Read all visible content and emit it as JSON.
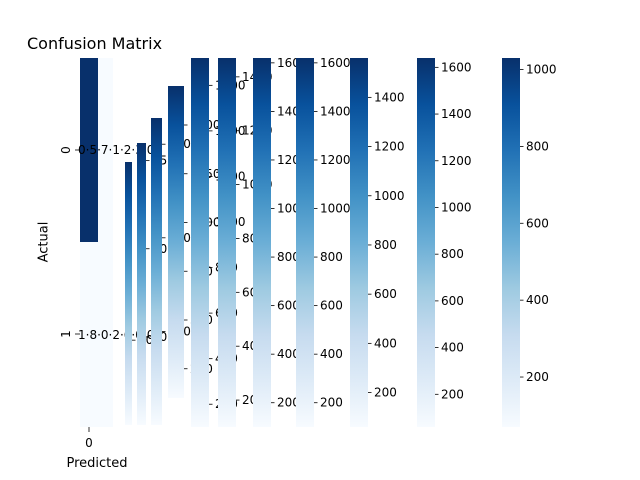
{
  "chart_data": {
    "type": "heatmap",
    "title": "Confusion Matrix",
    "xlabel": "Predicted",
    "ylabel": "Actual",
    "x_tick_labels": [
      "0"
    ],
    "y_tick_labels": [
      "0",
      "1"
    ],
    "colormap": "Blues",
    "colorbars": [
      {
        "vmin": 0,
        "vmax": 1550,
        "ticks": [
          500
        ]
      },
      {
        "vmin": 0,
        "vmax": 1600,
        "ticks": [
          500,
          1000,
          1500
        ]
      },
      {
        "vmin": 0,
        "vmax": 1640,
        "ticks": [
          500,
          1000,
          1500
        ]
      },
      {
        "vmin": 100,
        "vmax": 1700,
        "ticks": [
          250,
          500,
          750,
          1000,
          1250,
          1500
        ]
      },
      {
        "vmin": 100,
        "vmax": 1720,
        "ticks": [
          200,
          400,
          600,
          800,
          1000,
          1200,
          1400,
          1600
        ]
      },
      {
        "vmin": 100,
        "vmax": 1470,
        "ticks": [
          200,
          400,
          600,
          800,
          1000,
          1200,
          1400
        ]
      },
      {
        "vmin": 100,
        "vmax": 1620,
        "ticks": [
          200,
          400,
          600,
          800,
          1000,
          1200,
          1400,
          1600
        ]
      },
      {
        "vmin": 100,
        "vmax": 1620,
        "ticks": [
          200,
          400,
          600,
          800,
          1000,
          1200,
          1400,
          1600
        ]
      },
      {
        "vmin": 60,
        "vmax": 1560,
        "ticks": [
          200,
          400,
          600,
          800,
          1000,
          1200,
          1400
        ]
      },
      {
        "vmin": 60,
        "vmax": 1640,
        "ticks": [
          200,
          400,
          600,
          800,
          1000,
          1200,
          1400,
          1600
        ]
      },
      {
        "vmin": 70,
        "vmax": 1030,
        "ticks": [
          200,
          400,
          600,
          800,
          1000
        ]
      }
    ]
  },
  "colors": {
    "cell_dark": "#08306b",
    "cell_light": "#f7fbff",
    "blues_scale": [
      "#f7fbff",
      "#deebf7",
      "#c6dbef",
      "#9ecae1",
      "#6baed6",
      "#4292c6",
      "#2171b5",
      "#08519c",
      "#08306b"
    ]
  }
}
